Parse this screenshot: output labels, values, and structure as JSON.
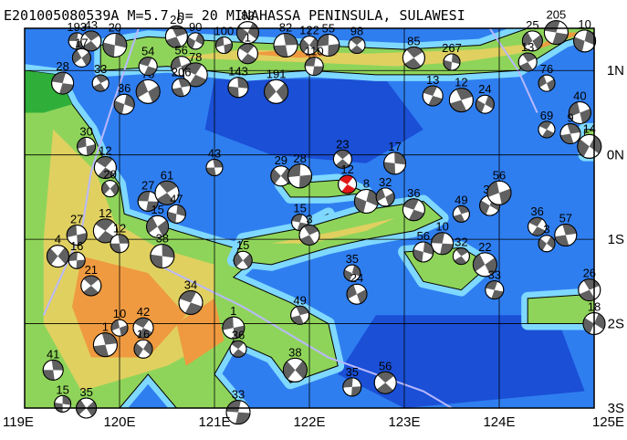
{
  "map": {
    "title": "E201005080539A M=5.7 h= 20 MINAHASSA PENINSULA, SULAWESI",
    "lon_ticks": [
      "119E",
      "120E",
      "121E",
      "122E",
      "123E",
      "124E",
      "125E"
    ],
    "lat_ticks": [
      "1N",
      "0N",
      "1S",
      "2S",
      "3S"
    ],
    "extent": {
      "lon_min": 119,
      "lon_max": 125,
      "lat_min": -3,
      "lat_max": 1.5
    },
    "colors": {
      "deep_ocean": "#1a4fd6",
      "ocean": "#2f7ef0",
      "shelf": "#4fb0ff",
      "shallow": "#7fd8ff",
      "lowland": "#2fae3a",
      "plain": "#8fd45a",
      "hills": "#e0d060",
      "mountains": "#ef9a40",
      "grid": "#000000",
      "plate_boundary": "#b8b8ff",
      "target_event": "#e01818",
      "mechanism_fill": "#606060"
    },
    "target_event": {
      "label": "12",
      "lon": 122.4,
      "lat": -0.35
    },
    "events": [
      {
        "label": "193",
        "lon": 119.55,
        "lat": 1.35
      },
      {
        "label": "43",
        "lon": 119.7,
        "lat": 1.35
      },
      {
        "label": "20",
        "lon": 119.95,
        "lat": 1.3
      },
      {
        "label": "17",
        "lon": 119.6,
        "lat": 1.15
      },
      {
        "label": "28",
        "lon": 119.4,
        "lat": 0.85
      },
      {
        "label": "33",
        "lon": 119.8,
        "lat": 0.85
      },
      {
        "label": "36",
        "lon": 120.05,
        "lat": 0.6
      },
      {
        "label": "76",
        "lon": 120.3,
        "lat": 0.75
      },
      {
        "label": "54",
        "lon": 120.3,
        "lat": 1.05
      },
      {
        "label": "26",
        "lon": 120.6,
        "lat": 1.4
      },
      {
        "label": "90",
        "lon": 120.8,
        "lat": 1.35
      },
      {
        "label": "56",
        "lon": 120.65,
        "lat": 1.05
      },
      {
        "label": "78",
        "lon": 120.8,
        "lat": 0.95
      },
      {
        "label": "206",
        "lon": 120.65,
        "lat": 0.8
      },
      {
        "label": "82",
        "lon": 121.35,
        "lat": 1.45
      },
      {
        "label": "100",
        "lon": 121.1,
        "lat": 1.3
      },
      {
        "label": "1",
        "lon": 121.35,
        "lat": 1.2
      },
      {
        "label": "82",
        "lon": 121.75,
        "lat": 1.3
      },
      {
        "label": "122",
        "lon": 122.0,
        "lat": 1.3
      },
      {
        "label": "55",
        "lon": 122.2,
        "lat": 1.3
      },
      {
        "label": "98",
        "lon": 122.5,
        "lat": 1.3
      },
      {
        "label": "143",
        "lon": 121.25,
        "lat": 0.8
      },
      {
        "label": "191",
        "lon": 121.65,
        "lat": 0.75
      },
      {
        "label": "110",
        "lon": 122.05,
        "lat": 1.05
      },
      {
        "label": "85",
        "lon": 123.1,
        "lat": 1.15
      },
      {
        "label": "267",
        "lon": 123.5,
        "lat": 1.1
      },
      {
        "label": "25",
        "lon": 124.35,
        "lat": 1.35
      },
      {
        "label": "205",
        "lon": 124.6,
        "lat": 1.45
      },
      {
        "label": "13",
        "lon": 124.3,
        "lat": 1.1
      },
      {
        "label": "10",
        "lon": 124.9,
        "lat": 1.35
      },
      {
        "label": "76",
        "lon": 124.5,
        "lat": 0.85
      },
      {
        "label": "13",
        "lon": 123.3,
        "lat": 0.7
      },
      {
        "label": "12",
        "lon": 123.6,
        "lat": 0.65
      },
      {
        "label": "24",
        "lon": 123.85,
        "lat": 0.6
      },
      {
        "label": "40",
        "lon": 124.85,
        "lat": 0.5
      },
      {
        "label": "69",
        "lon": 124.5,
        "lat": 0.3
      },
      {
        "label": "9",
        "lon": 124.75,
        "lat": 0.25
      },
      {
        "label": "14",
        "lon": 124.95,
        "lat": 0.1
      },
      {
        "label": "30",
        "lon": 119.65,
        "lat": 0.1
      },
      {
        "label": "12",
        "lon": 119.85,
        "lat": -0.15
      },
      {
        "label": "43",
        "lon": 121.0,
        "lat": -0.15
      },
      {
        "label": "29",
        "lon": 121.7,
        "lat": -0.25
      },
      {
        "label": "28",
        "lon": 121.9,
        "lat": -0.25
      },
      {
        "label": "23",
        "lon": 122.35,
        "lat": -0.05
      },
      {
        "label": "17",
        "lon": 122.9,
        "lat": -0.1
      },
      {
        "label": "20",
        "lon": 119.9,
        "lat": -0.4
      },
      {
        "label": "27",
        "lon": 120.3,
        "lat": -0.55
      },
      {
        "label": "61",
        "lon": 120.5,
        "lat": -0.45
      },
      {
        "label": "47",
        "lon": 120.6,
        "lat": -0.7
      },
      {
        "label": "15",
        "lon": 120.4,
        "lat": -0.85
      },
      {
        "label": "15",
        "lon": 121.9,
        "lat": -0.8
      },
      {
        "label": "3",
        "lon": 122.0,
        "lat": -0.95
      },
      {
        "label": "8",
        "lon": 122.6,
        "lat": -0.55
      },
      {
        "label": "32",
        "lon": 122.8,
        "lat": -0.5
      },
      {
        "label": "36",
        "lon": 123.1,
        "lat": -0.65
      },
      {
        "label": "49",
        "lon": 123.6,
        "lat": -0.7
      },
      {
        "label": "33",
        "lon": 123.9,
        "lat": -0.6
      },
      {
        "label": "56",
        "lon": 124.0,
        "lat": -0.45
      },
      {
        "label": "36",
        "lon": 124.4,
        "lat": -0.85
      },
      {
        "label": "57",
        "lon": 124.7,
        "lat": -0.95
      },
      {
        "label": "3",
        "lon": 124.5,
        "lat": -1.05
      },
      {
        "label": "27",
        "lon": 119.55,
        "lat": -0.95
      },
      {
        "label": "12",
        "lon": 119.85,
        "lat": -0.9
      },
      {
        "label": "12",
        "lon": 120.0,
        "lat": -1.05
      },
      {
        "label": "4",
        "lon": 119.35,
        "lat": -1.2
      },
      {
        "label": "16",
        "lon": 119.55,
        "lat": -1.25
      },
      {
        "label": "21",
        "lon": 119.7,
        "lat": -1.55
      },
      {
        "label": "38",
        "lon": 120.45,
        "lat": -1.2
      },
      {
        "label": "15",
        "lon": 121.3,
        "lat": -1.25
      },
      {
        "label": "10",
        "lon": 123.4,
        "lat": -1.05
      },
      {
        "label": "32",
        "lon": 123.6,
        "lat": -1.2
      },
      {
        "label": "56",
        "lon": 123.2,
        "lat": -1.15
      },
      {
        "label": "22",
        "lon": 123.85,
        "lat": -1.3
      },
      {
        "label": "33",
        "lon": 123.95,
        "lat": -1.6
      },
      {
        "label": "26",
        "lon": 124.95,
        "lat": -1.6
      },
      {
        "label": "35",
        "lon": 122.45,
        "lat": -1.4
      },
      {
        "label": "24",
        "lon": 122.5,
        "lat": -1.65
      },
      {
        "label": "34",
        "lon": 120.75,
        "lat": -1.75
      },
      {
        "label": "49",
        "lon": 121.9,
        "lat": -1.9
      },
      {
        "label": "18",
        "lon": 125.0,
        "lat": -2.0
      },
      {
        "label": "10",
        "lon": 120.0,
        "lat": -2.05
      },
      {
        "label": "42",
        "lon": 120.25,
        "lat": -2.05
      },
      {
        "label": "1",
        "lon": 119.85,
        "lat": -2.25
      },
      {
        "label": "16",
        "lon": 120.25,
        "lat": -2.3
      },
      {
        "label": "1",
        "lon": 121.2,
        "lat": -2.05
      },
      {
        "label": "36",
        "lon": 121.25,
        "lat": -2.3
      },
      {
        "label": "41",
        "lon": 119.3,
        "lat": -2.55
      },
      {
        "label": "38",
        "lon": 121.85,
        "lat": -2.55
      },
      {
        "label": "35",
        "lon": 122.45,
        "lat": -2.75
      },
      {
        "label": "56",
        "lon": 122.8,
        "lat": -2.7
      },
      {
        "label": "15",
        "lon": 119.4,
        "lat": -2.95
      },
      {
        "label": "35",
        "lon": 119.65,
        "lat": -3.0
      },
      {
        "label": "33",
        "lon": 121.25,
        "lat": -3.05
      }
    ]
  }
}
